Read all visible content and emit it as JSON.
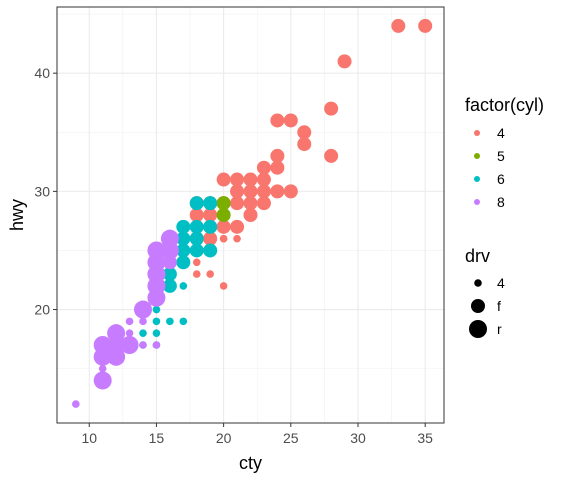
{
  "chart_data": {
    "type": "scatter",
    "xlabel": "cty",
    "ylabel": "hwy",
    "xlim": [
      7.6,
      36.4
    ],
    "ylim": [
      10.4,
      45.6
    ],
    "x_ticks": [
      10,
      15,
      20,
      25,
      30,
      35
    ],
    "y_ticks": [
      20,
      30,
      40
    ],
    "grid": true,
    "legend_position": "right",
    "color_legend": {
      "title": "factor(cyl)",
      "entries": [
        {
          "label": "4",
          "color": "#F8766D"
        },
        {
          "label": "5",
          "color": "#7CAE00"
        },
        {
          "label": "6",
          "color": "#00BFC4"
        },
        {
          "label": "8",
          "color": "#C77CFF"
        }
      ]
    },
    "size_legend": {
      "title": "drv",
      "entries": [
        {
          "label": "4",
          "size": "small"
        },
        {
          "label": "f",
          "size": "medium"
        },
        {
          "label": "r",
          "size": "large"
        }
      ]
    },
    "series": [
      {
        "cyl": "4",
        "drv": "f",
        "points": [
          [
            33,
            44
          ],
          [
            35,
            44
          ],
          [
            29,
            41
          ],
          [
            28,
            37
          ],
          [
            24,
            36
          ],
          [
            25,
            36
          ],
          [
            26,
            35
          ],
          [
            26,
            34
          ],
          [
            28,
            33
          ],
          [
            24,
            33
          ],
          [
            23,
            32
          ],
          [
            24,
            32
          ],
          [
            21,
            31
          ],
          [
            22,
            31
          ],
          [
            23,
            31
          ],
          [
            20,
            31
          ],
          [
            21,
            30
          ],
          [
            22,
            30
          ],
          [
            23,
            30
          ],
          [
            24,
            30
          ],
          [
            25,
            30
          ],
          [
            22,
            29
          ],
          [
            23,
            29
          ],
          [
            21,
            29
          ],
          [
            19,
            29
          ],
          [
            18,
            29
          ],
          [
            20,
            29
          ],
          [
            22,
            28
          ],
          [
            19,
            28
          ],
          [
            18,
            28
          ],
          [
            21,
            27
          ],
          [
            20,
            27
          ],
          [
            19,
            27
          ],
          [
            19,
            26
          ],
          [
            18,
            26
          ]
        ]
      },
      {
        "cyl": "4",
        "drv": "4",
        "points": [
          [
            21,
            26
          ],
          [
            20,
            26
          ],
          [
            19,
            25
          ],
          [
            18,
            24
          ],
          [
            18,
            23
          ],
          [
            19,
            23
          ],
          [
            20,
            22
          ],
          [
            20,
            26
          ],
          [
            19,
            26
          ]
        ]
      },
      {
        "cyl": "5",
        "drv": "f",
        "points": [
          [
            20,
            29
          ],
          [
            20,
            28
          ]
        ]
      },
      {
        "cyl": "6",
        "drv": "f",
        "points": [
          [
            19,
            29
          ],
          [
            18,
            29
          ],
          [
            17,
            27
          ],
          [
            18,
            27
          ],
          [
            19,
            27
          ],
          [
            16,
            26
          ],
          [
            17,
            26
          ],
          [
            18,
            26
          ],
          [
            16,
            25
          ],
          [
            17,
            25
          ],
          [
            18,
            25
          ],
          [
            19,
            25
          ],
          [
            15,
            24
          ],
          [
            16,
            24
          ],
          [
            17,
            24
          ],
          [
            16,
            23
          ],
          [
            15,
            22
          ],
          [
            16,
            22
          ]
        ]
      },
      {
        "cyl": "6",
        "drv": "4",
        "points": [
          [
            17,
            25
          ],
          [
            16,
            24
          ],
          [
            15,
            23
          ],
          [
            17,
            22
          ],
          [
            14,
            20
          ],
          [
            15,
            20
          ],
          [
            15,
            19
          ],
          [
            16,
            19
          ],
          [
            17,
            19
          ],
          [
            14,
            18
          ],
          [
            15,
            18
          ],
          [
            14,
            17
          ],
          [
            15,
            17
          ]
        ]
      },
      {
        "cyl": "8",
        "drv": "4",
        "points": [
          [
            9,
            12
          ],
          [
            11,
            15
          ],
          [
            11,
            16
          ],
          [
            11,
            17
          ],
          [
            12,
            17
          ],
          [
            13,
            17
          ],
          [
            14,
            17
          ],
          [
            12,
            18
          ],
          [
            13,
            18
          ],
          [
            13,
            19
          ],
          [
            14,
            20
          ],
          [
            15,
            17
          ],
          [
            14,
            19
          ]
        ]
      },
      {
        "cyl": "8",
        "drv": "r",
        "points": [
          [
            11,
            14
          ],
          [
            11,
            16
          ],
          [
            11,
            17
          ],
          [
            12,
            16
          ],
          [
            12,
            17
          ],
          [
            12,
            18
          ],
          [
            13,
            17
          ],
          [
            14,
            20
          ],
          [
            15,
            21
          ],
          [
            15,
            22
          ],
          [
            15,
            23
          ],
          [
            15,
            24
          ],
          [
            15,
            25
          ],
          [
            16,
            25
          ],
          [
            16,
            26
          ]
        ]
      },
      {
        "cyl": "8",
        "drv": "f",
        "points": [
          [
            16,
            25
          ],
          [
            16,
            24
          ]
        ]
      }
    ]
  }
}
